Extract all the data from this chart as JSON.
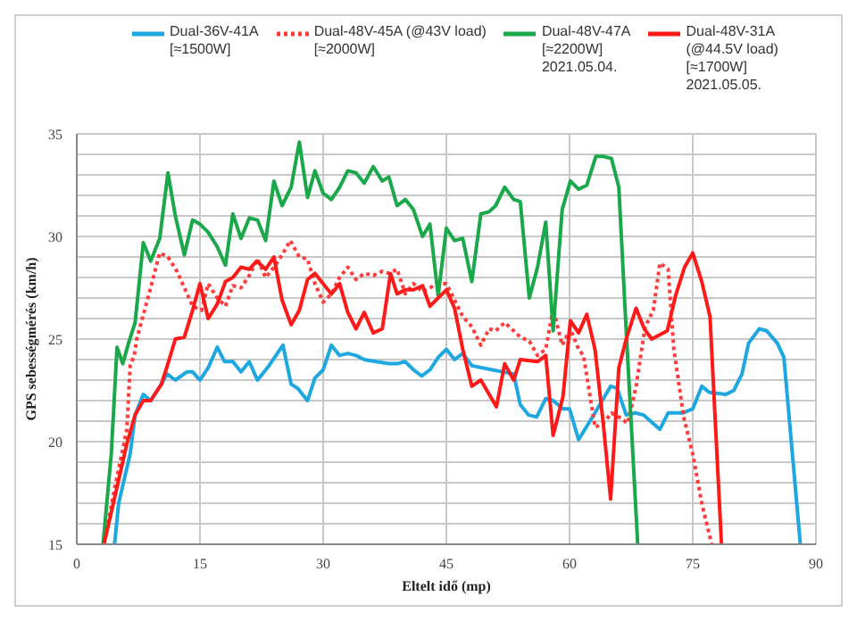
{
  "chart_data": {
    "type": "line",
    "xlabel": "Eltelt idő (mp)",
    "ylabel": "GPS sebességmérés (km/h)",
    "xlim": [
      0,
      90
    ],
    "xticks": [
      0,
      15,
      30,
      45,
      60,
      75,
      90
    ],
    "ylim": [
      15,
      35
    ],
    "yticks": [
      15,
      {
        "value": 16,
        "label": null
      },
      {
        "value": 17,
        "label": null
      },
      {
        "value": 18,
        "label": null
      },
      {
        "value": 19,
        "label": null
      },
      20,
      {
        "value": 21,
        "label": null
      },
      {
        "value": 22,
        "label": null
      },
      {
        "value": 23,
        "label": null
      },
      {
        "value": 24,
        "label": null
      },
      25,
      {
        "value": 26,
        "label": null
      },
      {
        "value": 27,
        "label": null
      },
      {
        "value": 28,
        "label": null
      },
      {
        "value": 29,
        "label": null
      },
      30,
      {
        "value": 31,
        "label": null
      },
      {
        "value": 32,
        "label": null
      },
      {
        "value": 33,
        "label": null
      },
      {
        "value": 34,
        "label": null
      },
      35
    ],
    "grid": true,
    "legend": "top",
    "marker": "none",
    "series": [
      {
        "name": "Dual-36V-41A\n[≈1500W]",
        "color": "#1ea7e1",
        "line_style": "solid",
        "x": [
          4.6,
          5.1,
          6.5,
          7.1,
          8.1,
          9,
          10.3,
          11,
          12,
          13.4,
          14.1,
          15,
          16,
          17.1,
          18,
          19,
          20,
          21,
          22,
          23.4,
          25.1,
          26.1,
          26.9,
          28.1,
          29,
          30,
          31,
          32,
          33,
          34,
          35,
          36.4,
          38,
          39,
          40,
          41,
          42,
          43,
          44,
          45,
          46,
          47,
          48.1,
          50.6,
          53.2,
          54,
          55,
          56,
          57.1,
          58,
          59.2,
          60,
          61.1,
          63.1,
          65,
          65.8,
          66.9,
          68,
          69,
          71,
          72,
          73.8,
          75,
          76.1,
          77,
          79,
          80,
          81,
          81.8,
          83.1,
          84,
          85.3,
          86.1,
          88.1
        ],
        "values": [
          15,
          17,
          19.4,
          21.3,
          22.3,
          22,
          22.8,
          23.3,
          23,
          23.4,
          23.4,
          23,
          23.6,
          24.6,
          23.9,
          23.9,
          23.4,
          23.9,
          23,
          23.7,
          24.7,
          22.8,
          22.6,
          22,
          23.1,
          23.5,
          24.7,
          24.2,
          24.3,
          24.2,
          24,
          23.9,
          23.8,
          23.8,
          23.9,
          23.5,
          23.2,
          23.5,
          24.1,
          24.5,
          24,
          24.3,
          23.7,
          23.5,
          23.3,
          21.8,
          21.3,
          21.2,
          22.1,
          22,
          21.6,
          21.6,
          20.1,
          21.4,
          22.7,
          22.6,
          21.3,
          21.4,
          21.3,
          20.6,
          21.4,
          21.4,
          21.6,
          22.7,
          22.4,
          22.3,
          22.5,
          23.3,
          24.8,
          25.5,
          25.4,
          24.8,
          24.1,
          15
        ]
      },
      {
        "name": "Dual-48V-45A (@43V load)\n[≈2000W]",
        "color": "#ff3b3b",
        "line_style": "dotted",
        "x": [
          3.3,
          4.7,
          6.1,
          6.5,
          7,
          7.3,
          9,
          10.1,
          11.1,
          12.2,
          13.1,
          14.1,
          15.2,
          16,
          17.1,
          18.1,
          19,
          20,
          21,
          22,
          23,
          24,
          25,
          26,
          27.1,
          28.1,
          29,
          30,
          31,
          32,
          33,
          34,
          35,
          36.1,
          37.2,
          38,
          39,
          40,
          41,
          42.1,
          43,
          44,
          45,
          46,
          47,
          48.1,
          49.2,
          50.2,
          51,
          52.1,
          53.2,
          54,
          55.1,
          56.1,
          57.1,
          58,
          59.1,
          60.1,
          61.1,
          61.7,
          63.1,
          64.1,
          65.1,
          66,
          67.1,
          68.1,
          69.2,
          70.2,
          71,
          72,
          72.7,
          73.9,
          75,
          76.1,
          77.3
        ],
        "values": [
          15,
          17.9,
          20.6,
          23.7,
          24.2,
          25,
          27.5,
          29.2,
          29,
          28.3,
          27.5,
          26.6,
          26.4,
          27.7,
          27,
          26.6,
          27.6,
          27.5,
          28.1,
          28.9,
          28,
          28.5,
          29.1,
          29.8,
          29,
          28.9,
          27.7,
          26.8,
          27.2,
          28,
          28.5,
          27.9,
          28.2,
          28.1,
          28.3,
          28.2,
          28.4,
          27.2,
          27.7,
          27.3,
          27.5,
          27.7,
          27.7,
          26.9,
          26.1,
          25.6,
          24.7,
          25.5,
          25.4,
          25.8,
          25.4,
          25.1,
          24.9,
          24.2,
          24.5,
          26.5,
          24.7,
          25.5,
          24.5,
          24.2,
          20.7,
          20.9,
          21.4,
          21.2,
          20.9,
          22.7,
          25.6,
          26.4,
          28.7,
          28.4,
          24.5,
          21.2,
          19.4,
          17,
          15
        ]
      },
      {
        "name": "Dual-48V-47A\n[≈2200W]\n2021.05.04.",
        "color": "#1aa84a",
        "line_style": "solid",
        "x": [
          3.2,
          4.2,
          4.9,
          5.6,
          6.3,
          7.1,
          8.1,
          9,
          10.1,
          11.1,
          12,
          13.1,
          14.1,
          15,
          16,
          17.1,
          18.1,
          19,
          20,
          21,
          22,
          23,
          24,
          25,
          26.1,
          27.1,
          28.1,
          29,
          30,
          31,
          32,
          33,
          34,
          35,
          36.1,
          37.2,
          38,
          39,
          40,
          41,
          42.1,
          43,
          44,
          45,
          46,
          47,
          48.1,
          49.2,
          50.2,
          51,
          52.1,
          53.2,
          54,
          55.1,
          56.1,
          57.1,
          58,
          59.1,
          60.1,
          61.1,
          62.1,
          63.2,
          64.1,
          65.1,
          66,
          66.9,
          68.3
        ],
        "values": [
          15,
          19.4,
          24.6,
          23.8,
          24.8,
          25.8,
          29.7,
          28.8,
          29.9,
          33.1,
          31,
          29.1,
          30.8,
          30.6,
          30.2,
          29.5,
          28.6,
          31.1,
          29.9,
          30.9,
          30.8,
          29.8,
          32.7,
          31.5,
          32.4,
          34.6,
          31.9,
          33.2,
          32.1,
          31.8,
          32.4,
          33.2,
          33.1,
          32.6,
          33.4,
          32.7,
          32.9,
          31.5,
          31.8,
          31.3,
          30,
          30.6,
          27.1,
          30.4,
          29.8,
          29.9,
          27.8,
          31.1,
          31.2,
          31.5,
          32.4,
          31.8,
          31.7,
          27,
          28.5,
          30.7,
          25.4,
          31.3,
          32.7,
          32.3,
          32.5,
          33.9,
          33.9,
          33.8,
          32.4,
          25.4,
          15
        ]
      },
      {
        "name": "Dual-48V-31A\n(@44.5V load)\n[≈1700W]\n2021.05.05.",
        "color": "#ff1a1a",
        "line_style": "solid",
        "x": [
          3.3,
          4.4,
          6.1,
          7.1,
          8.1,
          9,
          10.3,
          11.1,
          12,
          13.1,
          14.1,
          15,
          16,
          17.1,
          18.1,
          19,
          20,
          21,
          21.9,
          23,
          24,
          25,
          26.1,
          27.1,
          28.1,
          29,
          30,
          31,
          32,
          33,
          34,
          35,
          36.1,
          37.2,
          38.2,
          39,
          40,
          41,
          42.1,
          43,
          44,
          45,
          46,
          47,
          48.1,
          49.2,
          51.1,
          52.1,
          53.2,
          54,
          56.1,
          57.1,
          58,
          59.2,
          60.1,
          61.1,
          62.1,
          63.1,
          64.1,
          65,
          66,
          66.9,
          68.1,
          69.1,
          70,
          71.9,
          72.9,
          74,
          75,
          76.1,
          77.1,
          78.5
        ],
        "values": [
          15,
          16.9,
          19.9,
          21.3,
          22,
          22,
          22.8,
          23.8,
          25,
          25.1,
          26.4,
          27.7,
          26,
          26.7,
          27.8,
          28,
          28.5,
          28.4,
          28.8,
          28.4,
          29,
          26.9,
          25.7,
          26.4,
          27.9,
          28.2,
          27.7,
          27.2,
          27.7,
          26.3,
          25.5,
          26.3,
          25.3,
          25.5,
          28.2,
          27.2,
          27.4,
          27.4,
          27.6,
          26.6,
          27,
          27.4,
          26.5,
          24.5,
          22.7,
          23,
          21.7,
          23.8,
          23,
          24,
          23.9,
          24.2,
          20.3,
          22.2,
          25.9,
          25.3,
          26.2,
          24.5,
          20.9,
          17.2,
          23.6,
          25,
          26.5,
          25.5,
          25,
          25.4,
          27.1,
          28.5,
          29.2,
          27.8,
          26.1,
          15
        ]
      }
    ]
  }
}
